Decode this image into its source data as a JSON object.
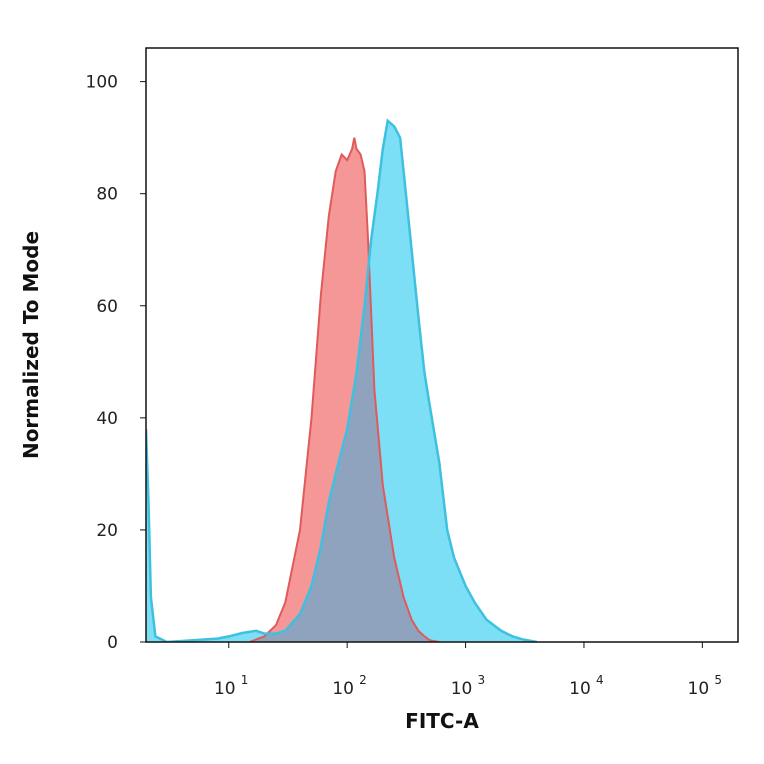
{
  "chart_data": {
    "type": "area",
    "xlabel": "FITC-A",
    "ylabel": "Normalized To Mode",
    "x_scale": "log",
    "xlim": [
      2,
      200000
    ],
    "ylim": [
      0,
      106
    ],
    "y_ticks": [
      0,
      20,
      40,
      60,
      80,
      100
    ],
    "y_tick_labels": [
      "0",
      "20",
      "40",
      "60",
      "80",
      "100"
    ],
    "x_ticks": [
      10,
      100,
      1000,
      10000,
      100000
    ],
    "x_tick_labels": [
      {
        "base": "10",
        "exp": "1"
      },
      {
        "base": "10",
        "exp": "2"
      },
      {
        "base": "10",
        "exp": "3"
      },
      {
        "base": "10",
        "exp": "4"
      },
      {
        "base": "10",
        "exp": "5"
      }
    ],
    "grid": false,
    "series": [
      {
        "color": "#e05a5a",
        "fill": "#f48c8c",
        "points": [
          [
            15,
            0
          ],
          [
            20,
            1
          ],
          [
            25,
            3
          ],
          [
            30,
            7
          ],
          [
            40,
            20
          ],
          [
            50,
            40
          ],
          [
            60,
            62
          ],
          [
            70,
            76
          ],
          [
            80,
            84
          ],
          [
            90,
            87
          ],
          [
            100,
            86
          ],
          [
            110,
            88
          ],
          [
            115,
            90
          ],
          [
            120,
            88
          ],
          [
            130,
            87
          ],
          [
            140,
            84
          ],
          [
            150,
            72
          ],
          [
            170,
            45
          ],
          [
            200,
            28
          ],
          [
            250,
            15
          ],
          [
            300,
            8
          ],
          [
            350,
            4
          ],
          [
            400,
            2
          ],
          [
            450,
            1
          ],
          [
            500,
            0.3
          ],
          [
            600,
            0
          ]
        ]
      },
      {
        "color": "#3ec0e0",
        "fill": "#6fdcf5",
        "points": [
          [
            2,
            38
          ],
          [
            2.1,
            25
          ],
          [
            2.2,
            8
          ],
          [
            2.4,
            1
          ],
          [
            3,
            0
          ],
          [
            5,
            0.3
          ],
          [
            8,
            0.6
          ],
          [
            10,
            1
          ],
          [
            13,
            1.6
          ],
          [
            17,
            2
          ],
          [
            20,
            1.5
          ],
          [
            25,
            1.5
          ],
          [
            30,
            2
          ],
          [
            40,
            5
          ],
          [
            50,
            10
          ],
          [
            60,
            17
          ],
          [
            70,
            25
          ],
          [
            80,
            30
          ],
          [
            100,
            38
          ],
          [
            120,
            48
          ],
          [
            140,
            60
          ],
          [
            160,
            72
          ],
          [
            180,
            80
          ],
          [
            200,
            88
          ],
          [
            220,
            93
          ],
          [
            250,
            92
          ],
          [
            280,
            90
          ],
          [
            300,
            84
          ],
          [
            350,
            70
          ],
          [
            400,
            58
          ],
          [
            450,
            48
          ],
          [
            500,
            42
          ],
          [
            600,
            32
          ],
          [
            700,
            20
          ],
          [
            800,
            15
          ],
          [
            1000,
            10
          ],
          [
            1200,
            7
          ],
          [
            1500,
            4
          ],
          [
            2000,
            2
          ],
          [
            2500,
            1
          ],
          [
            3000,
            0.5
          ],
          [
            4000,
            0
          ]
        ]
      }
    ],
    "overlap_fill": "#8fa3bf"
  }
}
